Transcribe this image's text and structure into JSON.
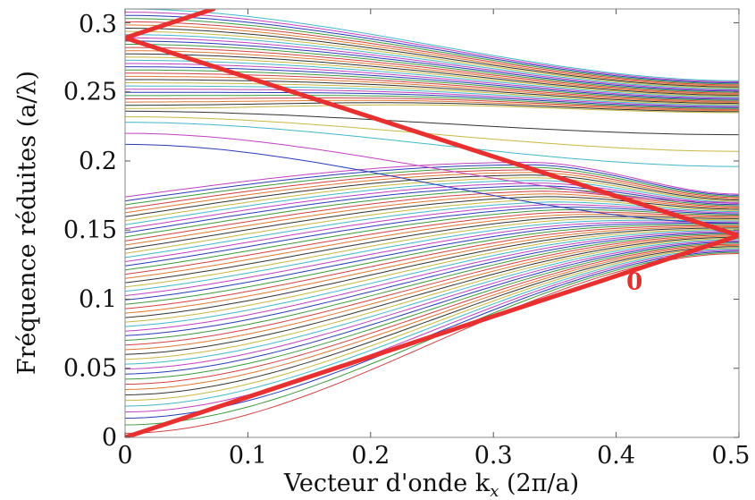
{
  "chart_data": {
    "type": "line",
    "title": "",
    "xlabel": "Vecteur d'onde k",
    "xlabel_subscript": "x",
    "xlabel_units": " (2π/a)",
    "ylabel": "Fréquence réduites (a/λ)",
    "xlim": [
      0,
      0.5
    ],
    "ylim": [
      0,
      0.31
    ],
    "x_ticks": [
      {
        "value": 0,
        "label": "0"
      },
      {
        "value": 0.1,
        "label": "0.1"
      },
      {
        "value": 0.2,
        "label": "0.2"
      },
      {
        "value": 0.3,
        "label": "0.3"
      },
      {
        "value": 0.4,
        "label": "0.4"
      },
      {
        "value": 0.5,
        "label": "0.5"
      }
    ],
    "y_ticks": [
      {
        "value": 0,
        "label": "0"
      },
      {
        "value": 0.05,
        "label": "0.05"
      },
      {
        "value": 0.1,
        "label": "0.1"
      },
      {
        "value": 0.15,
        "label": "0.15"
      },
      {
        "value": 0.2,
        "label": "0.2"
      },
      {
        "value": 0.25,
        "label": "0.25"
      },
      {
        "value": 0.3,
        "label": "0.3"
      }
    ],
    "grid": false,
    "legend": "none",
    "annotations": [
      {
        "text": "0",
        "x": 0.415,
        "y": 0.107,
        "color": "#e03030"
      }
    ],
    "overlay_polylines": [
      {
        "color": "#e83030",
        "points": [
          [
            0,
            0
          ],
          [
            0.5,
            0.146
          ],
          [
            0,
            0.289
          ],
          [
            0.072,
            0.31
          ]
        ]
      }
    ],
    "band_groups": {
      "colors": [
        "#d44040",
        "#3c9a3c",
        "#2a3ab8",
        "#c040c0",
        "#40b8c8",
        "#c8b840",
        "#333333",
        "#e07830"
      ],
      "lower": {
        "count": 52,
        "start_min": 0.003,
        "start_max": 0.174,
        "end_min": 0.133,
        "end_max": 0.176,
        "crest_min": 0.16,
        "crest_max": 0.199,
        "crest_x": 0.33
      },
      "middle": [
        {
          "y0": 0.212,
          "y1": 0.155
        },
        {
          "y0": 0.22,
          "y1": 0.17
        },
        {
          "y0": 0.228,
          "y1": 0.196
        },
        {
          "y0": 0.232,
          "y1": 0.207
        },
        {
          "y0": 0.236,
          "y1": 0.219
        }
      ],
      "upper": {
        "count": 32,
        "start_min": 0.238,
        "start_max": 0.31,
        "end_min": 0.235,
        "end_max": 0.258
      }
    }
  }
}
